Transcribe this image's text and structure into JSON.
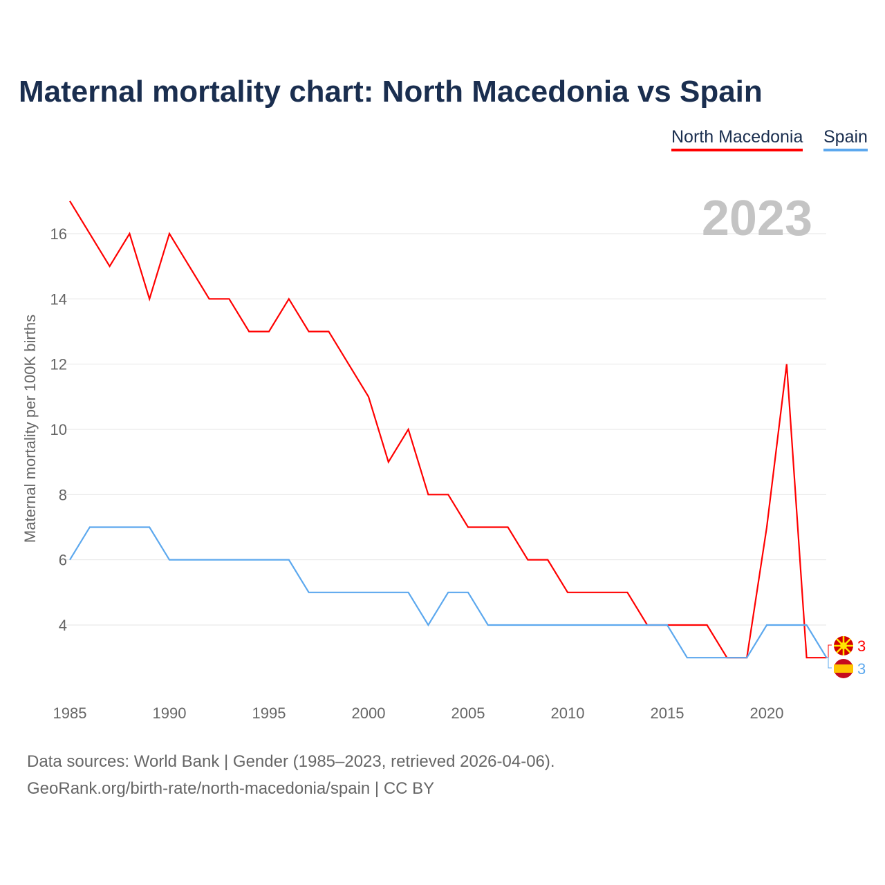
{
  "title": "Maternal mortality chart: North Macedonia vs Spain",
  "legend": [
    "North Macedonia",
    "Spain"
  ],
  "footer": {
    "line1": "Data sources: World Bank | Gender (1985–2023, retrieved 2026-04-06).",
    "line2": "GeoRank.org/birth-rate/north-macedonia/spain | CC BY"
  },
  "chart_data": {
    "type": "line",
    "title": "Maternal mortality chart: North Macedonia vs Spain",
    "year_label": "2023",
    "xlabel": "",
    "ylabel": "Maternal mortality per 100K births",
    "xlim": [
      1985,
      2023
    ],
    "ylim": [
      2,
      17
    ],
    "xticks": [
      1985,
      1990,
      1995,
      2000,
      2005,
      2010,
      2015,
      2020
    ],
    "yticks": [
      4,
      6,
      8,
      10,
      12,
      14,
      16
    ],
    "grid": true,
    "x": [
      1985,
      1986,
      1987,
      1988,
      1989,
      1990,
      1991,
      1992,
      1993,
      1994,
      1995,
      1996,
      1997,
      1998,
      1999,
      2000,
      2001,
      2002,
      2003,
      2004,
      2005,
      2006,
      2007,
      2008,
      2009,
      2010,
      2011,
      2012,
      2013,
      2014,
      2015,
      2016,
      2017,
      2018,
      2019,
      2020,
      2021,
      2022,
      2023
    ],
    "series": [
      {
        "name": "North Macedonia",
        "color": "#ff0000",
        "end_label": "3",
        "values": [
          17,
          16,
          15,
          16,
          14,
          16,
          15,
          14,
          14,
          13,
          13,
          14,
          13,
          13,
          12,
          11,
          9,
          10,
          8,
          8,
          7,
          7,
          7,
          6,
          6,
          5,
          5,
          5,
          5,
          4,
          4,
          4,
          4,
          3,
          3,
          7,
          12,
          3,
          3
        ]
      },
      {
        "name": "Spain",
        "color": "#5ca8ee",
        "end_label": "3",
        "values": [
          6,
          7,
          7,
          7,
          7,
          6,
          6,
          6,
          6,
          6,
          6,
          6,
          5,
          5,
          5,
          5,
          5,
          5,
          4,
          5,
          5,
          4,
          4,
          4,
          4,
          4,
          4,
          4,
          4,
          4,
          4,
          3,
          3,
          3,
          3,
          4,
          4,
          4,
          3
        ]
      }
    ]
  }
}
